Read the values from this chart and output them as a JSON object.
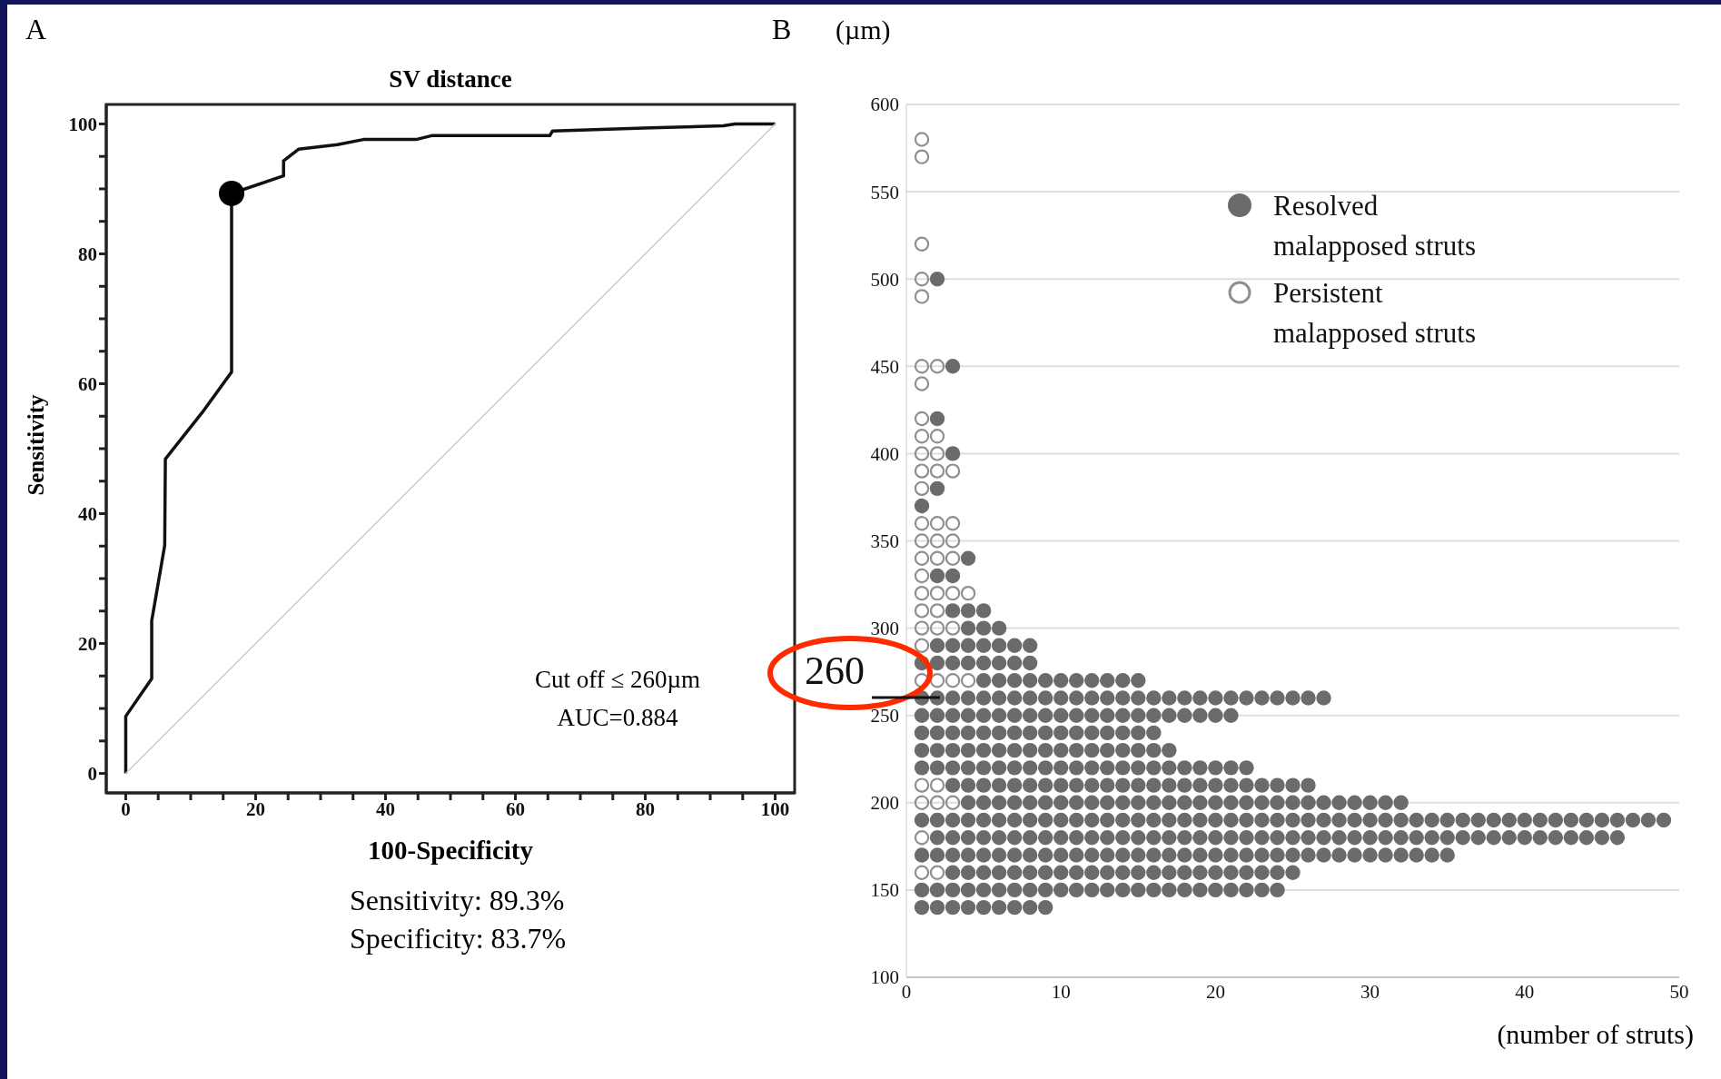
{
  "chart_data": [
    {
      "type": "line",
      "title": "SV distance",
      "xlabel": "100-Specificity",
      "ylabel": "Sensitivity",
      "xlim": [
        -3,
        103
      ],
      "ylim": [
        -3,
        103
      ],
      "xticks": [
        0,
        {
          "value": 5,
          "label": null
        },
        {
          "value": 10,
          "label": null
        },
        {
          "value": 15,
          "label": null
        },
        20,
        {
          "value": 25,
          "label": null
        },
        {
          "value": 30,
          "label": null
        },
        {
          "value": 35,
          "label": null
        },
        40,
        {
          "value": 45,
          "label": null
        },
        {
          "value": 50,
          "label": null
        },
        {
          "value": 55,
          "label": null
        },
        60,
        {
          "value": 65,
          "label": null
        },
        {
          "value": 70,
          "label": null
        },
        {
          "value": 75,
          "label": null
        },
        80,
        {
          "value": 85,
          "label": null
        },
        {
          "value": 90,
          "label": null
        },
        {
          "value": 95,
          "label": null
        },
        100
      ],
      "yticks": [
        0,
        {
          "value": 5,
          "label": null
        },
        {
          "value": 10,
          "label": null
        },
        {
          "value": 15,
          "label": null
        },
        20,
        {
          "value": 25,
          "label": null
        },
        {
          "value": 30,
          "label": null
        },
        {
          "value": 35,
          "label": null
        },
        40,
        {
          "value": 45,
          "label": null
        },
        {
          "value": 50,
          "label": null
        },
        {
          "value": 55,
          "label": null
        },
        60,
        {
          "value": 65,
          "label": null
        },
        {
          "value": 70,
          "label": null
        },
        {
          "value": 75,
          "label": null
        },
        80,
        {
          "value": 85,
          "label": null
        },
        {
          "value": 90,
          "label": null
        },
        {
          "value": 95,
          "label": null
        },
        100
      ],
      "grid": false,
      "legend": false,
      "annotations": [
        "A",
        "Cut off ≤ 260µm",
        "AUC=0.884",
        "Sensitivity: 89.3%",
        "Specificity: 83.7%"
      ],
      "series": [
        {
          "color": "#111111",
          "x": [
            0,
            0,
            4,
            4,
            6,
            6.1,
            11.8,
            16.3,
            16.3,
            24.3,
            24.3,
            26.6,
            32.6,
            36.6,
            44.7,
            47.1,
            65.3,
            65.7,
            80.8,
            92,
            93.8,
            100
          ],
          "values": [
            0,
            8.8,
            14.6,
            23.5,
            35.1,
            48.4,
            55.6,
            61.8,
            89.3,
            92,
            94.3,
            96.1,
            96.8,
            97.6,
            97.6,
            98.2,
            98.2,
            98.9,
            99.4,
            99.7,
            100,
            100
          ]
        },
        {
          "color": "#cccccc",
          "x": [
            0,
            100
          ],
          "values": [
            0,
            100
          ]
        },
        {
          "type": "scatter",
          "color": "#000000",
          "marker": "circle",
          "x": [
            16.3
          ],
          "values": [
            89.3
          ]
        }
      ]
    },
    {
      "type": "scatter",
      "marker": "circle",
      "xlabel": "(number of struts)",
      "ylabel": "(µm)",
      "xlim": [
        0,
        50
      ],
      "xticks": [
        0,
        10,
        20,
        30,
        40,
        50
      ],
      "ylim": [
        100,
        600
      ],
      "yticks": [
        100,
        150,
        200,
        250,
        300,
        350,
        400,
        450,
        500,
        550,
        600
      ],
      "grid": "y",
      "legend": "top right",
      "annotations": [
        "B"
      ],
      "ref_lines": [
        {
          "axis": "y",
          "value": 260,
          "label": "260",
          "color": "#111111"
        }
      ],
      "series": [
        {
          "name": "Persistent malapposed struts",
          "color": "#8f8f8f",
          "x": [
            1,
            1,
            1,
            1,
            1,
            1,
            2,
            1,
            1,
            1,
            2,
            1,
            2,
            1,
            2,
            3,
            1,
            1,
            2,
            3,
            1,
            2,
            3,
            1,
            2,
            3,
            1,
            1,
            2,
            3,
            4,
            1,
            2,
            1,
            2,
            3,
            1,
            1,
            2,
            3,
            4,
            1,
            2,
            1,
            2,
            3,
            1,
            1,
            2
          ],
          "values": [
            580,
            570,
            520,
            500,
            490,
            450,
            450,
            440,
            420,
            410,
            410,
            400,
            400,
            390,
            390,
            390,
            380,
            360,
            360,
            360,
            350,
            350,
            350,
            340,
            340,
            340,
            330,
            320,
            320,
            320,
            320,
            310,
            310,
            300,
            300,
            300,
            290,
            270,
            270,
            270,
            270,
            210,
            210,
            200,
            200,
            200,
            180,
            160,
            160
          ]
        },
        {
          "name": "Resolved malapposed struts",
          "color": "#6b6b6b",
          "x": [
            2,
            3,
            2,
            3,
            2,
            1,
            4,
            2,
            3,
            3,
            4,
            5,
            4,
            5,
            6,
            2,
            3,
            4,
            5,
            6,
            7,
            8,
            1,
            2,
            3,
            4,
            5,
            6,
            7,
            8,
            5,
            6,
            7,
            8,
            9,
            10,
            11,
            12,
            13,
            14,
            15,
            1,
            2,
            3,
            4,
            5,
            6,
            7,
            8,
            9,
            10,
            11,
            12,
            13,
            14,
            15,
            16,
            17,
            18,
            19,
            20,
            21,
            22,
            23,
            24,
            25,
            26,
            27,
            1,
            2,
            3,
            4,
            5,
            6,
            7,
            8,
            9,
            10,
            11,
            12,
            13,
            14,
            15,
            16,
            17,
            18,
            19,
            20,
            21,
            1,
            2,
            3,
            4,
            5,
            6,
            7,
            8,
            9,
            10,
            11,
            12,
            13,
            14,
            15,
            16,
            1,
            2,
            3,
            4,
            5,
            6,
            7,
            8,
            9,
            10,
            11,
            12,
            13,
            14,
            15,
            16,
            17,
            1,
            2,
            3,
            4,
            5,
            6,
            7,
            8,
            9,
            10,
            11,
            12,
            13,
            14,
            15,
            16,
            17,
            18,
            19,
            20,
            21,
            22,
            3,
            4,
            5,
            6,
            7,
            8,
            9,
            10,
            11,
            12,
            13,
            14,
            15,
            16,
            17,
            18,
            19,
            20,
            21,
            22,
            23,
            24,
            25,
            26,
            4,
            5,
            6,
            7,
            8,
            9,
            10,
            11,
            12,
            13,
            14,
            15,
            16,
            17,
            18,
            19,
            20,
            21,
            22,
            23,
            24,
            25,
            26,
            27,
            28,
            29,
            30,
            31,
            32,
            1,
            2,
            3,
            4,
            5,
            6,
            7,
            8,
            9,
            10,
            11,
            12,
            13,
            14,
            15,
            16,
            17,
            18,
            19,
            20,
            21,
            22,
            23,
            24,
            25,
            26,
            27,
            28,
            29,
            30,
            31,
            32,
            33,
            34,
            35,
            36,
            37,
            38,
            39,
            40,
            41,
            42,
            43,
            44,
            45,
            46,
            47,
            48,
            49,
            2,
            3,
            4,
            5,
            6,
            7,
            8,
            9,
            10,
            11,
            12,
            13,
            14,
            15,
            16,
            17,
            18,
            19,
            20,
            21,
            22,
            23,
            24,
            25,
            26,
            27,
            28,
            29,
            30,
            31,
            32,
            33,
            34,
            35,
            36,
            37,
            38,
            39,
            40,
            41,
            42,
            43,
            44,
            45,
            46,
            1,
            2,
            3,
            4,
            5,
            6,
            7,
            8,
            9,
            10,
            11,
            12,
            13,
            14,
            15,
            16,
            17,
            18,
            19,
            20,
            21,
            22,
            23,
            24,
            25,
            26,
            27,
            28,
            29,
            30,
            31,
            32,
            33,
            34,
            35,
            3,
            4,
            5,
            6,
            7,
            8,
            9,
            10,
            11,
            12,
            13,
            14,
            15,
            16,
            17,
            18,
            19,
            20,
            21,
            22,
            23,
            24,
            25,
            1,
            2,
            3,
            4,
            5,
            6,
            7,
            8,
            9,
            10,
            11,
            12,
            13,
            14,
            15,
            16,
            17,
            18,
            19,
            20,
            21,
            22,
            23,
            24,
            1,
            2,
            3,
            4,
            5,
            6,
            7,
            8,
            9
          ],
          "values": [
            500,
            450,
            420,
            400,
            380,
            370,
            340,
            330,
            330,
            310,
            310,
            310,
            300,
            300,
            300,
            290,
            290,
            290,
            290,
            290,
            290,
            290,
            280,
            280,
            280,
            280,
            280,
            280,
            280,
            280,
            270,
            270,
            270,
            270,
            270,
            270,
            270,
            270,
            270,
            270,
            270,
            260,
            260,
            260,
            260,
            260,
            260,
            260,
            260,
            260,
            260,
            260,
            260,
            260,
            260,
            260,
            260,
            260,
            260,
            260,
            260,
            260,
            260,
            260,
            260,
            260,
            260,
            260,
            250,
            250,
            250,
            250,
            250,
            250,
            250,
            250,
            250,
            250,
            250,
            250,
            250,
            250,
            250,
            250,
            250,
            250,
            250,
            250,
            250,
            240,
            240,
            240,
            240,
            240,
            240,
            240,
            240,
            240,
            240,
            240,
            240,
            240,
            240,
            240,
            240,
            230,
            230,
            230,
            230,
            230,
            230,
            230,
            230,
            230,
            230,
            230,
            230,
            230,
            230,
            230,
            230,
            230,
            220,
            220,
            220,
            220,
            220,
            220,
            220,
            220,
            220,
            220,
            220,
            220,
            220,
            220,
            220,
            220,
            220,
            220,
            220,
            220,
            220,
            220,
            210,
            210,
            210,
            210,
            210,
            210,
            210,
            210,
            210,
            210,
            210,
            210,
            210,
            210,
            210,
            210,
            210,
            210,
            210,
            210,
            210,
            210,
            210,
            210,
            200,
            200,
            200,
            200,
            200,
            200,
            200,
            200,
            200,
            200,
            200,
            200,
            200,
            200,
            200,
            200,
            200,
            200,
            200,
            200,
            200,
            200,
            200,
            200,
            200,
            200,
            200,
            200,
            200,
            190,
            190,
            190,
            190,
            190,
            190,
            190,
            190,
            190,
            190,
            190,
            190,
            190,
            190,
            190,
            190,
            190,
            190,
            190,
            190,
            190,
            190,
            190,
            190,
            190,
            190,
            190,
            190,
            190,
            190,
            190,
            190,
            190,
            190,
            190,
            190,
            190,
            190,
            190,
            190,
            190,
            190,
            190,
            190,
            190,
            190,
            190,
            190,
            190,
            180,
            180,
            180,
            180,
            180,
            180,
            180,
            180,
            180,
            180,
            180,
            180,
            180,
            180,
            180,
            180,
            180,
            180,
            180,
            180,
            180,
            180,
            180,
            180,
            180,
            180,
            180,
            180,
            180,
            180,
            180,
            180,
            180,
            180,
            180,
            180,
            180,
            180,
            180,
            180,
            180,
            180,
            180,
            180,
            180,
            170,
            170,
            170,
            170,
            170,
            170,
            170,
            170,
            170,
            170,
            170,
            170,
            170,
            170,
            170,
            170,
            170,
            170,
            170,
            170,
            170,
            170,
            170,
            170,
            170,
            170,
            170,
            170,
            170,
            170,
            170,
            170,
            170,
            170,
            170,
            160,
            160,
            160,
            160,
            160,
            160,
            160,
            160,
            160,
            160,
            160,
            160,
            160,
            160,
            160,
            160,
            160,
            160,
            160,
            160,
            160,
            160,
            160,
            150,
            150,
            150,
            150,
            150,
            150,
            150,
            150,
            150,
            150,
            150,
            150,
            150,
            150,
            150,
            150,
            150,
            150,
            150,
            150,
            150,
            150,
            150,
            150,
            140,
            140,
            140,
            140,
            140,
            140,
            140,
            140,
            140
          ]
        }
      ]
    }
  ]
}
